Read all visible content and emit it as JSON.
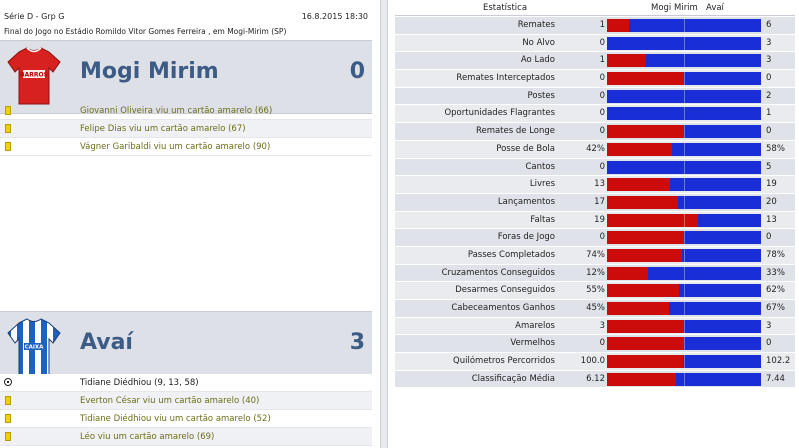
{
  "match": {
    "competition": "Série D - Grp G",
    "datetime": "16.8.2015 18:30",
    "venue": "Final do Jogo no Estádio Romildo Vitor Gomes Ferreira , em Mogi-Mirim (SP)"
  },
  "home": {
    "name": "Mogi Mirim",
    "score": "0",
    "kit_color": "#d7211e",
    "kit_text": "BARROS",
    "events": [
      {
        "type": "yellow-card",
        "text": "Giovanni Oliveira viu um cartão amarelo (66)"
      },
      {
        "type": "yellow-card",
        "text": "Felipe Dias viu um cartão amarelo (67)"
      },
      {
        "type": "yellow-card",
        "text": "Vágner Garibaldi viu um cartão amarelo (90)"
      }
    ]
  },
  "away": {
    "name": "Avaí",
    "score": "3",
    "kit_color": "#1d62c0",
    "kit_text": "CAIXA",
    "events": [
      {
        "type": "goal",
        "text": "Tidiane Diédhiou (9, 13, 58)"
      },
      {
        "type": "yellow-card",
        "text": "Everton César viu um cartão amarelo (40)"
      },
      {
        "type": "yellow-card",
        "text": "Tidiane Diédhiou viu um cartão amarelo (52)"
      },
      {
        "type": "yellow-card",
        "text": "Léo viu um cartão amarelo (69)"
      }
    ]
  },
  "stats_header": {
    "stat": "Estatística",
    "home": "Mogi Mirim",
    "away": "Avaí"
  },
  "colors": {
    "home_bar": "#cc0b0b",
    "away_bar": "#1a2ed8",
    "team_name": "#3c5b85"
  },
  "stats": [
    {
      "label": "Remates",
      "home": "1",
      "away": "6",
      "home_share": 0.143
    },
    {
      "label": "No Alvo",
      "home": "0",
      "away": "3",
      "home_share": 0.0
    },
    {
      "label": "Ao Lado",
      "home": "1",
      "away": "3",
      "home_share": 0.25
    },
    {
      "label": "Remates Interceptados",
      "home": "0",
      "away": "0",
      "home_share": 0.5
    },
    {
      "label": "Postes",
      "home": "0",
      "away": "2",
      "home_share": 0.0
    },
    {
      "label": "Oportunidades Flagrantes",
      "home": "0",
      "away": "1",
      "home_share": 0.0
    },
    {
      "label": "Remates de Longe",
      "home": "0",
      "away": "0",
      "home_share": 0.5
    },
    {
      "label": "Posse de Bola",
      "home": "42%",
      "away": "58%",
      "home_share": 0.42
    },
    {
      "label": "Cantos",
      "home": "0",
      "away": "5",
      "home_share": 0.0
    },
    {
      "label": "Livres",
      "home": "13",
      "away": "19",
      "home_share": 0.406
    },
    {
      "label": "Lançamentos",
      "home": "17",
      "away": "20",
      "home_share": 0.459
    },
    {
      "label": "Faltas",
      "home": "19",
      "away": "13",
      "home_share": 0.594
    },
    {
      "label": "Foras de Jogo",
      "home": "0",
      "away": "0",
      "home_share": 0.5
    },
    {
      "label": "Passes Completados",
      "home": "74%",
      "away": "78%",
      "home_share": 0.487
    },
    {
      "label": "Cruzamentos Conseguidos",
      "home": "12%",
      "away": "33%",
      "home_share": 0.267
    },
    {
      "label": "Desarmes Conseguidos",
      "home": "55%",
      "away": "62%",
      "home_share": 0.47
    },
    {
      "label": "Cabeceamentos Ganhos",
      "home": "45%",
      "away": "67%",
      "home_share": 0.402
    },
    {
      "label": "Amarelos",
      "home": "3",
      "away": "3",
      "home_share": 0.5
    },
    {
      "label": "Vermelhos",
      "home": "0",
      "away": "0",
      "home_share": 0.5
    },
    {
      "label": "Quilómetros Percorridos",
      "home": "100.0",
      "away": "102.2",
      "home_share": 0.495
    },
    {
      "label": "Classificação Média",
      "home": "6.12",
      "away": "7.44",
      "home_share": 0.451
    }
  ]
}
